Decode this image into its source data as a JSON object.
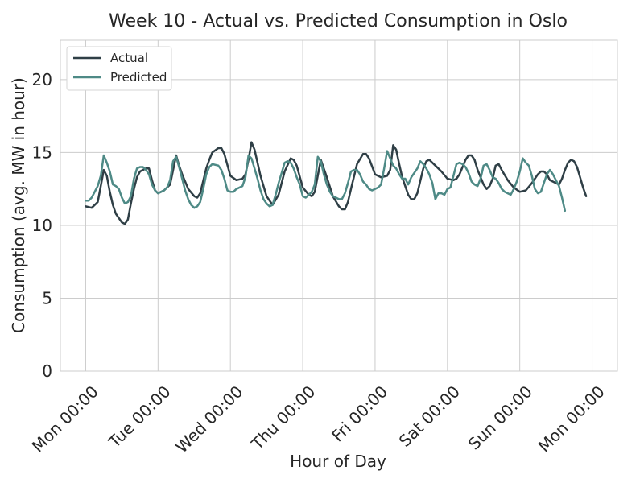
{
  "chart_data": {
    "type": "line",
    "title": "Week 10 - Actual vs. Predicted Consumption in Oslo",
    "xlabel": "Hour of Day",
    "ylabel": "Consumption (avg. MW in hour)",
    "ylim": [
      0,
      22.7
    ],
    "yticks": [
      0,
      5,
      10,
      15,
      20
    ],
    "x_tick_hours": [
      0,
      24,
      48,
      72,
      96,
      120,
      144,
      168
    ],
    "x_tick_labels": [
      "Mon 00:00",
      "Tue 00:00",
      "Wed 00:00",
      "Thu 00:00",
      "Fri 00:00",
      "Sat 00:00",
      "Sun 00:00",
      "Mon 00:00"
    ],
    "xlim": [
      -8.4,
      176.4
    ],
    "grid": true,
    "legend_position": "top-left",
    "series": [
      {
        "name": "Actual",
        "color": "#2f3f46",
        "points": [
          [
            0,
            11.3
          ],
          [
            2,
            11.2
          ],
          [
            4,
            11.6
          ],
          [
            5,
            12.7
          ],
          [
            6,
            13.8
          ],
          [
            7,
            13.4
          ],
          [
            8,
            12.3
          ],
          [
            9,
            11.4
          ],
          [
            10,
            10.8
          ],
          [
            12,
            10.2
          ],
          [
            13,
            10.1
          ],
          [
            14,
            10.4
          ],
          [
            15,
            11.5
          ],
          [
            16,
            12.5
          ],
          [
            17,
            13.3
          ],
          [
            18,
            13.7
          ],
          [
            20,
            13.9
          ],
          [
            21,
            13.9
          ],
          [
            22,
            13.1
          ],
          [
            23,
            12.4
          ],
          [
            24,
            12.2
          ],
          [
            26,
            12.4
          ],
          [
            28,
            12.8
          ],
          [
            30,
            14.8
          ],
          [
            31,
            14.1
          ],
          [
            32,
            13.5
          ],
          [
            34,
            12.5
          ],
          [
            36,
            12.0
          ],
          [
            37,
            11.9
          ],
          [
            38,
            12.2
          ],
          [
            40,
            13.9
          ],
          [
            41,
            14.5
          ],
          [
            42,
            15.0
          ],
          [
            44,
            15.3
          ],
          [
            45,
            15.3
          ],
          [
            46,
            14.9
          ],
          [
            48,
            13.4
          ],
          [
            50,
            13.1
          ],
          [
            52,
            13.2
          ],
          [
            53,
            13.5
          ],
          [
            54,
            14.5
          ],
          [
            55,
            15.7
          ],
          [
            56,
            15.2
          ],
          [
            58,
            13.4
          ],
          [
            60,
            12.0
          ],
          [
            62,
            11.4
          ],
          [
            64,
            12.1
          ],
          [
            66,
            13.7
          ],
          [
            68,
            14.6
          ],
          [
            69,
            14.5
          ],
          [
            70,
            14.1
          ],
          [
            72,
            12.6
          ],
          [
            74,
            12.1
          ],
          [
            75,
            12.0
          ],
          [
            76,
            12.3
          ],
          [
            78,
            14.5
          ],
          [
            80,
            13.3
          ],
          [
            82,
            12.0
          ],
          [
            84,
            11.3
          ],
          [
            85,
            11.1
          ],
          [
            86,
            11.1
          ],
          [
            87,
            11.6
          ],
          [
            88,
            12.5
          ],
          [
            90,
            14.2
          ],
          [
            92,
            14.9
          ],
          [
            93,
            14.9
          ],
          [
            94,
            14.6
          ],
          [
            96,
            13.5
          ],
          [
            98,
            13.3
          ],
          [
            100,
            13.4
          ],
          [
            101,
            13.8
          ],
          [
            102,
            15.5
          ],
          [
            103,
            15.2
          ],
          [
            104,
            14.2
          ],
          [
            105,
            13.3
          ],
          [
            107,
            12.1
          ],
          [
            108,
            11.8
          ],
          [
            109,
            11.8
          ],
          [
            110,
            12.2
          ],
          [
            112,
            13.9
          ],
          [
            113,
            14.4
          ],
          [
            114,
            14.5
          ],
          [
            116,
            14.1
          ],
          [
            118,
            13.7
          ],
          [
            120,
            13.2
          ],
          [
            122,
            13.1
          ],
          [
            123,
            13.2
          ],
          [
            124,
            13.5
          ],
          [
            126,
            14.5
          ],
          [
            127,
            14.8
          ],
          [
            128,
            14.8
          ],
          [
            129,
            14.5
          ],
          [
            130,
            13.8
          ],
          [
            132,
            12.8
          ],
          [
            133,
            12.5
          ],
          [
            134,
            12.7
          ],
          [
            135,
            13.2
          ],
          [
            136,
            14.1
          ],
          [
            137,
            14.2
          ],
          [
            138,
            13.8
          ],
          [
            140,
            13.1
          ],
          [
            142,
            12.6
          ],
          [
            144,
            12.3
          ],
          [
            146,
            12.4
          ],
          [
            148,
            12.9
          ],
          [
            150,
            13.5
          ],
          [
            151,
            13.7
          ],
          [
            152,
            13.7
          ],
          [
            153,
            13.5
          ],
          [
            154,
            13.1
          ],
          [
            156,
            12.9
          ],
          [
            157,
            12.8
          ],
          [
            158,
            13.2
          ],
          [
            159,
            13.8
          ],
          [
            160,
            14.3
          ],
          [
            161,
            14.5
          ],
          [
            162,
            14.4
          ],
          [
            163,
            14.0
          ],
          [
            164,
            13.3
          ],
          [
            165,
            12.6
          ],
          [
            166,
            12.0
          ]
        ]
      },
      {
        "name": "Predicted",
        "color": "#4e8a86",
        "points": [
          [
            0,
            11.7
          ],
          [
            1,
            11.7
          ],
          [
            2,
            11.9
          ],
          [
            4,
            12.7
          ],
          [
            5,
            13.4
          ],
          [
            6,
            14.8
          ],
          [
            7,
            14.3
          ],
          [
            8,
            13.7
          ],
          [
            9,
            12.8
          ],
          [
            10,
            12.7
          ],
          [
            11,
            12.5
          ],
          [
            12,
            11.9
          ],
          [
            13,
            11.5
          ],
          [
            14,
            11.6
          ],
          [
            15,
            12.0
          ],
          [
            16,
            13.2
          ],
          [
            17,
            13.9
          ],
          [
            18,
            14.0
          ],
          [
            19,
            14.0
          ],
          [
            20,
            13.8
          ],
          [
            21,
            13.5
          ],
          [
            22,
            12.8
          ],
          [
            23,
            12.4
          ],
          [
            24,
            12.2
          ],
          [
            26,
            12.4
          ],
          [
            27,
            12.6
          ],
          [
            28,
            13.1
          ],
          [
            29,
            14.4
          ],
          [
            30,
            14.7
          ],
          [
            31,
            14.0
          ],
          [
            32,
            13.2
          ],
          [
            33,
            12.4
          ],
          [
            34,
            11.8
          ],
          [
            35,
            11.4
          ],
          [
            36,
            11.2
          ],
          [
            37,
            11.3
          ],
          [
            38,
            11.6
          ],
          [
            39,
            12.5
          ],
          [
            40,
            13.5
          ],
          [
            41,
            14.0
          ],
          [
            42,
            14.2
          ],
          [
            44,
            14.1
          ],
          [
            45,
            13.8
          ],
          [
            46,
            13.2
          ],
          [
            47,
            12.4
          ],
          [
            48,
            12.3
          ],
          [
            49,
            12.3
          ],
          [
            50,
            12.5
          ],
          [
            52,
            12.7
          ],
          [
            53,
            13.3
          ],
          [
            54,
            14.8
          ],
          [
            55,
            14.6
          ],
          [
            56,
            13.9
          ],
          [
            57,
            13.2
          ],
          [
            58,
            12.4
          ],
          [
            59,
            11.8
          ],
          [
            60,
            11.5
          ],
          [
            61,
            11.3
          ],
          [
            62,
            11.4
          ],
          [
            63,
            12.1
          ],
          [
            64,
            12.9
          ],
          [
            65,
            13.6
          ],
          [
            66,
            14.3
          ],
          [
            67,
            14.4
          ],
          [
            68,
            14.3
          ],
          [
            69,
            13.9
          ],
          [
            70,
            13.3
          ],
          [
            71,
            12.8
          ],
          [
            72,
            12.0
          ],
          [
            73,
            11.9
          ],
          [
            74,
            12.1
          ],
          [
            75,
            12.3
          ],
          [
            76,
            12.8
          ],
          [
            77,
            14.7
          ],
          [
            78,
            14.4
          ],
          [
            79,
            13.5
          ],
          [
            80,
            12.8
          ],
          [
            81,
            12.3
          ],
          [
            82,
            12.0
          ],
          [
            83,
            11.9
          ],
          [
            84,
            11.8
          ],
          [
            85,
            11.8
          ],
          [
            86,
            12.2
          ],
          [
            87,
            12.9
          ],
          [
            88,
            13.7
          ],
          [
            89,
            13.8
          ],
          [
            90,
            13.8
          ],
          [
            91,
            13.5
          ],
          [
            92,
            13.0
          ],
          [
            93,
            12.8
          ],
          [
            94,
            12.5
          ],
          [
            95,
            12.4
          ],
          [
            96,
            12.5
          ],
          [
            97,
            12.6
          ],
          [
            98,
            12.8
          ],
          [
            99,
            13.9
          ],
          [
            100,
            15.1
          ],
          [
            101,
            14.6
          ],
          [
            102,
            14.1
          ],
          [
            103,
            13.9
          ],
          [
            104,
            13.5
          ],
          [
            105,
            13.2
          ],
          [
            106,
            13.2
          ],
          [
            107,
            12.8
          ],
          [
            108,
            13.3
          ],
          [
            109,
            13.6
          ],
          [
            110,
            13.9
          ],
          [
            111,
            14.4
          ],
          [
            112,
            14.2
          ],
          [
            113,
            13.9
          ],
          [
            114,
            13.5
          ],
          [
            115,
            12.9
          ],
          [
            116,
            11.8
          ],
          [
            117,
            12.2
          ],
          [
            118,
            12.2
          ],
          [
            119,
            12.1
          ],
          [
            120,
            12.5
          ],
          [
            121,
            12.6
          ],
          [
            122,
            13.4
          ],
          [
            123,
            14.2
          ],
          [
            124,
            14.3
          ],
          [
            125,
            14.2
          ],
          [
            126,
            14.0
          ],
          [
            127,
            13.6
          ],
          [
            128,
            13.0
          ],
          [
            129,
            12.8
          ],
          [
            130,
            12.7
          ],
          [
            131,
            13.2
          ],
          [
            132,
            14.1
          ],
          [
            133,
            14.2
          ],
          [
            134,
            13.8
          ],
          [
            135,
            13.3
          ],
          [
            136,
            13.2
          ],
          [
            137,
            12.9
          ],
          [
            138,
            12.5
          ],
          [
            139,
            12.3
          ],
          [
            140,
            12.2
          ],
          [
            141,
            12.1
          ],
          [
            142,
            12.5
          ],
          [
            143,
            13.0
          ],
          [
            144,
            13.7
          ],
          [
            145,
            14.6
          ],
          [
            146,
            14.3
          ],
          [
            147,
            14.1
          ],
          [
            148,
            13.4
          ],
          [
            149,
            12.5
          ],
          [
            150,
            12.2
          ],
          [
            151,
            12.3
          ],
          [
            152,
            12.9
          ],
          [
            153,
            13.5
          ],
          [
            154,
            13.8
          ],
          [
            155,
            13.5
          ],
          [
            156,
            13.1
          ],
          [
            157,
            12.7
          ],
          [
            158,
            11.9
          ],
          [
            159,
            11.0
          ]
        ]
      }
    ]
  }
}
